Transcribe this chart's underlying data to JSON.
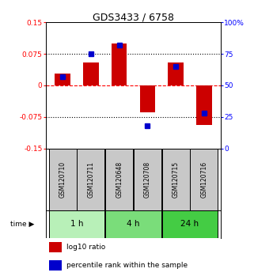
{
  "title": "GDS3433 / 6758",
  "samples": [
    "GSM120710",
    "GSM120711",
    "GSM120648",
    "GSM120708",
    "GSM120715",
    "GSM120716"
  ],
  "log10_ratio": [
    0.028,
    0.055,
    0.1,
    -0.065,
    0.055,
    -0.095
  ],
  "percentile_rank": [
    57,
    75,
    82,
    18,
    65,
    28
  ],
  "time_groups": [
    {
      "label": "1 h",
      "cols": [
        0,
        1
      ],
      "color": "#b8f0b8"
    },
    {
      "label": "4 h",
      "cols": [
        2,
        3
      ],
      "color": "#7add7a"
    },
    {
      "label": "24 h",
      "cols": [
        4,
        5
      ],
      "color": "#44cc44"
    }
  ],
  "bar_color_red": "#cc0000",
  "bar_color_blue": "#0000cc",
  "left_ylim": [
    -0.15,
    0.15
  ],
  "right_ylim": [
    0,
    100
  ],
  "left_yticks": [
    -0.15,
    -0.075,
    0,
    0.075,
    0.15
  ],
  "left_yticklabels": [
    "-0.15",
    "-0.075",
    "0",
    "0.075",
    "0.15"
  ],
  "right_yticks": [
    0,
    25,
    50,
    75,
    100
  ],
  "right_yticklabels": [
    "0",
    "25",
    "50",
    "75",
    "100%"
  ],
  "hlines_dotted": [
    -0.075,
    0.075
  ],
  "hline_dashed": 0,
  "bar_width": 0.55,
  "sample_bg_color": "#c8c8c8",
  "legend_red": "log10 ratio",
  "legend_blue": "percentile rank within the sample",
  "background_color": "#ffffff"
}
